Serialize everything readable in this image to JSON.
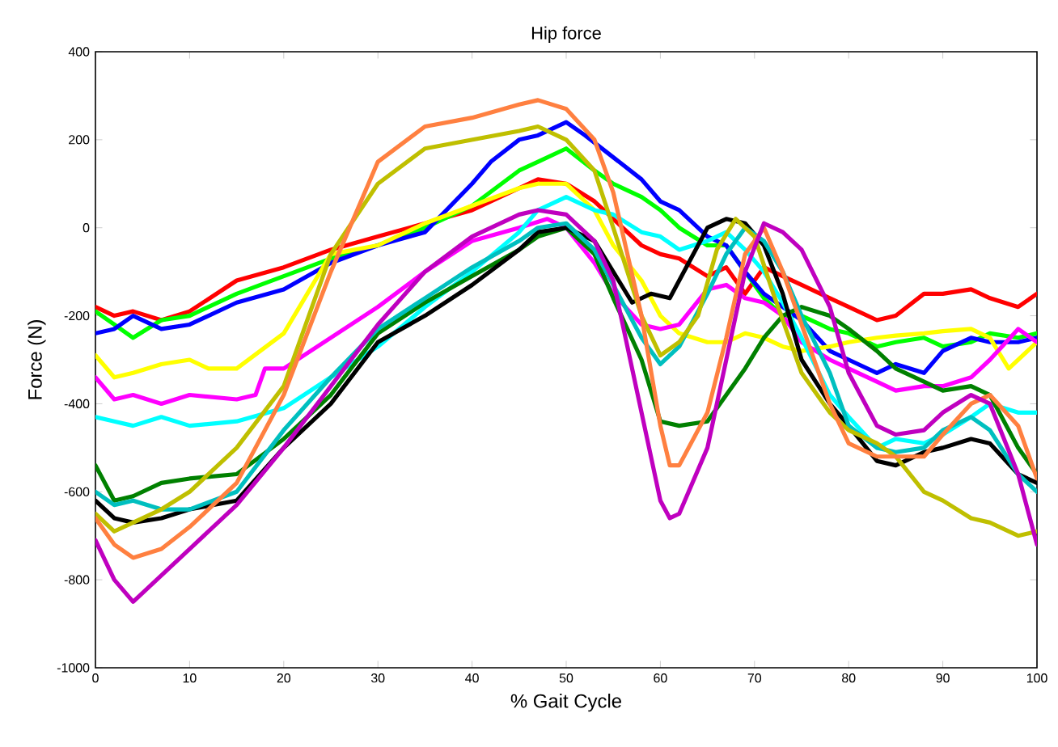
{
  "chart_data": {
    "type": "line",
    "title": "Hip  force",
    "xlabel": "% Gait Cycle",
    "ylabel": "Force (N)",
    "xlim": [
      0,
      100
    ],
    "xticks": [
      0,
      10,
      20,
      30,
      40,
      50,
      60,
      70,
      80,
      90,
      100
    ],
    "ylim": [
      -1000,
      400
    ],
    "yticks": [
      -1000,
      -800,
      -600,
      -400,
      -200,
      0,
      200,
      400
    ],
    "grid": false,
    "marker": "none",
    "line_style": "solid",
    "series": [
      {
        "color": "#ff0000",
        "x": [
          0,
          2,
          4,
          7,
          10,
          15,
          20,
          25,
          30,
          35,
          40,
          45,
          47,
          50,
          53,
          55,
          58,
          60,
          62,
          65,
          67,
          69,
          71,
          73,
          75,
          78,
          80,
          83,
          85,
          88,
          90,
          93,
          95,
          98,
          100
        ],
        "values": [
          -180,
          -200,
          -190,
          -210,
          -190,
          -120,
          -90,
          -50,
          -20,
          10,
          40,
          90,
          110,
          100,
          60,
          20,
          -40,
          -60,
          -70,
          -110,
          -90,
          -150,
          -90,
          -110,
          -130,
          -160,
          -180,
          -210,
          -200,
          -150,
          -150,
          -140,
          -160,
          -180,
          -150
        ]
      },
      {
        "color": "#00ff00",
        "x": [
          0,
          2,
          4,
          7,
          10,
          15,
          20,
          25,
          30,
          35,
          40,
          45,
          47,
          50,
          53,
          55,
          58,
          60,
          62,
          65,
          67,
          69,
          71,
          73,
          75,
          78,
          80,
          83,
          85,
          88,
          90,
          93,
          95,
          98,
          100
        ],
        "values": [
          -190,
          -220,
          -250,
          -210,
          -200,
          -150,
          -110,
          -70,
          -40,
          0,
          50,
          130,
          150,
          180,
          130,
          100,
          70,
          40,
          0,
          -40,
          -40,
          -100,
          -160,
          -200,
          -200,
          -230,
          -240,
          -270,
          -260,
          -250,
          -270,
          -260,
          -240,
          -250,
          -240
        ]
      },
      {
        "color": "#0000ff",
        "x": [
          0,
          2,
          4,
          7,
          10,
          15,
          20,
          25,
          30,
          35,
          40,
          42,
          45,
          47,
          50,
          52,
          55,
          58,
          60,
          62,
          65,
          67,
          69,
          71,
          73,
          75,
          78,
          80,
          83,
          85,
          88,
          90,
          93,
          95,
          98,
          100
        ],
        "values": [
          -240,
          -230,
          -200,
          -230,
          -220,
          -170,
          -140,
          -80,
          -40,
          -10,
          100,
          150,
          200,
          210,
          240,
          210,
          160,
          110,
          60,
          40,
          -20,
          -40,
          -100,
          -150,
          -180,
          -210,
          -280,
          -300,
          -330,
          -310,
          -330,
          -280,
          -250,
          -260,
          -260,
          -250
        ]
      },
      {
        "color": "#ffff00",
        "x": [
          0,
          2,
          4,
          7,
          10,
          12,
          15,
          20,
          25,
          30,
          35,
          40,
          45,
          47,
          50,
          53,
          55,
          58,
          60,
          62,
          65,
          67,
          69,
          71,
          73,
          75,
          78,
          80,
          83,
          85,
          88,
          90,
          93,
          95,
          97,
          100
        ],
        "values": [
          -290,
          -340,
          -330,
          -310,
          -300,
          -320,
          -320,
          -240,
          -60,
          -40,
          10,
          50,
          90,
          100,
          100,
          40,
          -40,
          -120,
          -200,
          -240,
          -260,
          -260,
          -240,
          -250,
          -270,
          -280,
          -270,
          -260,
          -250,
          -245,
          -240,
          -235,
          -230,
          -250,
          -320,
          -260
        ]
      },
      {
        "color": "#ff00ff",
        "x": [
          0,
          2,
          4,
          7,
          10,
          15,
          17,
          18,
          20,
          25,
          30,
          35,
          40,
          45,
          48,
          50,
          53,
          55,
          58,
          60,
          62,
          65,
          67,
          69,
          71,
          73,
          75,
          78,
          80,
          83,
          85,
          88,
          90,
          93,
          95,
          98,
          100
        ],
        "values": [
          -340,
          -390,
          -380,
          -400,
          -380,
          -390,
          -380,
          -320,
          -320,
          -250,
          -180,
          -100,
          -30,
          0,
          20,
          0,
          -80,
          -150,
          -220,
          -230,
          -220,
          -140,
          -130,
          -160,
          -170,
          -200,
          -260,
          -300,
          -320,
          -350,
          -370,
          -360,
          -360,
          -340,
          -300,
          -230,
          -260
        ]
      },
      {
        "color": "#00ffff",
        "x": [
          0,
          2,
          4,
          7,
          10,
          15,
          20,
          25,
          30,
          35,
          40,
          45,
          47,
          50,
          53,
          55,
          58,
          60,
          62,
          65,
          67,
          69,
          71,
          73,
          75,
          78,
          80,
          83,
          85,
          88,
          90,
          93,
          95,
          98,
          100
        ],
        "values": [
          -430,
          -440,
          -450,
          -430,
          -450,
          -440,
          -410,
          -340,
          -270,
          -180,
          -100,
          -10,
          40,
          70,
          40,
          30,
          -10,
          -20,
          -50,
          -30,
          -10,
          -50,
          -100,
          -170,
          -250,
          -380,
          -430,
          -500,
          -480,
          -490,
          -470,
          -430,
          -400,
          -420,
          -420
        ]
      },
      {
        "color": "#008000",
        "x": [
          0,
          2,
          4,
          7,
          10,
          15,
          20,
          25,
          30,
          35,
          40,
          45,
          47,
          50,
          53,
          55,
          58,
          60,
          62,
          65,
          67,
          69,
          71,
          73,
          75,
          78,
          80,
          83,
          85,
          88,
          90,
          93,
          95,
          98,
          100
        ],
        "values": [
          -540,
          -620,
          -610,
          -580,
          -570,
          -560,
          -480,
          -380,
          -240,
          -170,
          -110,
          -50,
          -20,
          0,
          -60,
          -160,
          -300,
          -440,
          -450,
          -440,
          -380,
          -320,
          -250,
          -200,
          -180,
          -200,
          -230,
          -280,
          -320,
          -350,
          -370,
          -360,
          -380,
          -500,
          -560
        ]
      },
      {
        "color": "#000000",
        "x": [
          0,
          2,
          4,
          7,
          10,
          15,
          20,
          25,
          30,
          35,
          40,
          45,
          47,
          50,
          53,
          55,
          57,
          59,
          61,
          63,
          65,
          67,
          69,
          71,
          73,
          75,
          78,
          80,
          83,
          85,
          88,
          90,
          93,
          95,
          98,
          100
        ],
        "values": [
          -620,
          -660,
          -670,
          -660,
          -640,
          -620,
          -500,
          -400,
          -260,
          -200,
          -130,
          -50,
          -10,
          0,
          -30,
          -100,
          -170,
          -150,
          -160,
          -80,
          0,
          20,
          10,
          -40,
          -150,
          -300,
          -400,
          -450,
          -530,
          -540,
          -510,
          -500,
          -480,
          -490,
          -560,
          -580
        ]
      },
      {
        "color": "#00bfbf",
        "x": [
          0,
          2,
          4,
          7,
          10,
          15,
          20,
          25,
          30,
          35,
          40,
          45,
          47,
          50,
          53,
          55,
          58,
          60,
          62,
          65,
          67,
          69,
          71,
          73,
          75,
          78,
          80,
          83,
          85,
          88,
          90,
          93,
          95,
          98,
          100
        ],
        "values": [
          -600,
          -630,
          -620,
          -640,
          -640,
          -600,
          -460,
          -340,
          -230,
          -160,
          -90,
          -30,
          0,
          10,
          -50,
          -130,
          -250,
          -310,
          -270,
          -150,
          -60,
          0,
          -30,
          -100,
          -200,
          -330,
          -450,
          -500,
          -510,
          -500,
          -460,
          -430,
          -460,
          -560,
          -600
        ]
      },
      {
        "color": "#bfbf00",
        "x": [
          0,
          2,
          4,
          7,
          10,
          15,
          20,
          25,
          30,
          35,
          40,
          45,
          47,
          50,
          53,
          55,
          58,
          60,
          62,
          64,
          66,
          68,
          70,
          72,
          75,
          78,
          80,
          83,
          85,
          88,
          90,
          93,
          95,
          98,
          100
        ],
        "values": [
          -650,
          -690,
          -670,
          -640,
          -600,
          -500,
          -360,
          -60,
          100,
          180,
          200,
          220,
          230,
          200,
          130,
          0,
          -200,
          -290,
          -260,
          -200,
          -50,
          20,
          -20,
          -150,
          -330,
          -420,
          -460,
          -490,
          -520,
          -600,
          -620,
          -660,
          -670,
          -700,
          -690
        ]
      },
      {
        "color": "#ff8040",
        "x": [
          0,
          2,
          4,
          7,
          10,
          15,
          20,
          25,
          28,
          30,
          35,
          40,
          45,
          47,
          50,
          53,
          55,
          58,
          60,
          61,
          62,
          65,
          67,
          69,
          71,
          73,
          75,
          78,
          80,
          83,
          85,
          88,
          90,
          93,
          95,
          98,
          100
        ],
        "values": [
          -660,
          -720,
          -750,
          -730,
          -680,
          -580,
          -380,
          -100,
          50,
          150,
          230,
          250,
          280,
          290,
          270,
          200,
          80,
          -200,
          -450,
          -540,
          -540,
          -420,
          -250,
          -60,
          0,
          -100,
          -220,
          -400,
          -490,
          -520,
          -520,
          -520,
          -470,
          -400,
          -380,
          -450,
          -570
        ]
      },
      {
        "color": "#bf00bf",
        "x": [
          0,
          2,
          4,
          7,
          10,
          15,
          20,
          25,
          30,
          35,
          40,
          45,
          47,
          50,
          53,
          55,
          58,
          60,
          61,
          62,
          65,
          67,
          69,
          71,
          73,
          75,
          78,
          80,
          83,
          85,
          88,
          90,
          93,
          95,
          98,
          100
        ],
        "values": [
          -710,
          -800,
          -850,
          -790,
          -730,
          -630,
          -500,
          -360,
          -220,
          -100,
          -20,
          30,
          40,
          30,
          -30,
          -120,
          -420,
          -620,
          -660,
          -650,
          -500,
          -300,
          -100,
          10,
          -10,
          -50,
          -180,
          -330,
          -450,
          -470,
          -460,
          -420,
          -380,
          -400,
          -560,
          -720
        ]
      }
    ]
  }
}
